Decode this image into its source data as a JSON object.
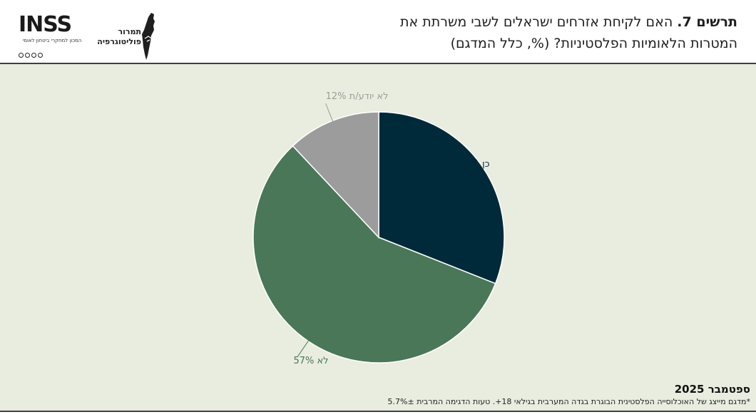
{
  "header": {
    "title_bold": "תרשים 7.",
    "title_line1": "האם לקיחת אזרחים ישראלים לשבי משרתת את",
    "title_line2": "המטרות הלאומיות הפלסטיניות? (%, כלל המדגם)"
  },
  "logos": {
    "inss_word": "INSS",
    "inss_subtitle": "המכון למחקרי ביטחון לאומי",
    "tamrur_line1": "תמרור",
    "tamrur_line2": "פוליטוגרפיה"
  },
  "chart_data": {
    "type": "pie",
    "slices": [
      {
        "label": "כן",
        "value": 31,
        "display": "כן 31%",
        "color": "#002a3a"
      },
      {
        "label": "לא",
        "value": 57,
        "display": "לא 57%",
        "color": "#4a7757"
      },
      {
        "label": "לא יודע/ת",
        "value": 12,
        "display": "לא יודע/ת 12%",
        "color": "#9c9c9c"
      }
    ],
    "start_angle_deg": 0,
    "direction": "clockwise",
    "background": "#e9eddf"
  },
  "footer": {
    "date": "ספטמבר 2025",
    "note": "*מדגם מייצג של האוכלוסייה הפלסטינית הבוגרת בגדה המערבית בגילאי 18+. טעות הדגימה המרבית 5.7%±"
  }
}
